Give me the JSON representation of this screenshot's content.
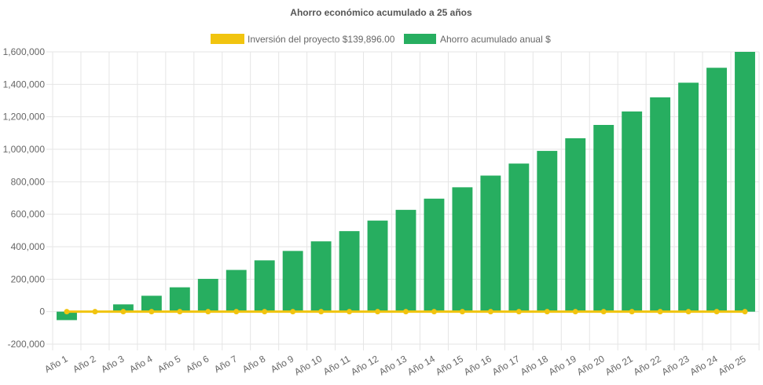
{
  "chart_data": {
    "type": "bar",
    "title": "Ahorro económico acumulado a 25 años",
    "categories": [
      "Año 1",
      "Año 2",
      "Año 3",
      "Año 4",
      "Año 5",
      "Año 6",
      "Año 7",
      "Año 8",
      "Año 9",
      "Año 10",
      "Año 11",
      "Año 12",
      "Año 13",
      "Año 14",
      "Año 15",
      "Año 16",
      "Año 17",
      "Año 18",
      "Año 19",
      "Año 20",
      "Año 21",
      "Año 22",
      "Año 23",
      "Año 24",
      "Año 25"
    ],
    "series": [
      {
        "name": "Inversión del proyecto $139,896.00",
        "kind": "line",
        "color": "#f1c40f",
        "values": [
          0,
          0,
          0,
          0,
          0,
          0,
          0,
          0,
          0,
          0,
          0,
          0,
          0,
          0,
          0,
          0,
          0,
          0,
          0,
          0,
          0,
          0,
          0,
          0,
          0
        ]
      },
      {
        "name": "Ahorro acumulado anual $",
        "kind": "bar",
        "color": "#27ae60",
        "values": [
          -52000,
          0,
          45000,
          98000,
          150000,
          202000,
          257000,
          316000,
          374000,
          433000,
          496000,
          561000,
          627000,
          696000,
          766000,
          838000,
          912000,
          990000,
          1068000,
          1150000,
          1233000,
          1320000,
          1410000,
          1502000,
          1600000
        ]
      }
    ],
    "yticks": [
      "1,600,000",
      "1,400,000",
      "1,200,000",
      "1,000,000",
      "800,000",
      "600,000",
      "400,000",
      "200,000",
      "0",
      "-200,000"
    ],
    "ylim": [
      -200000,
      1600000
    ],
    "grid": true,
    "legend_position": "top"
  }
}
